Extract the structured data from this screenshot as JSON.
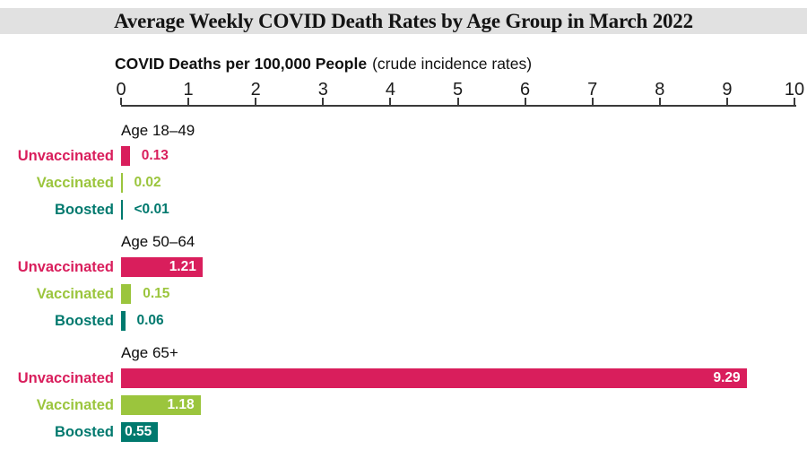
{
  "colors": {
    "unvaccinated": "#d91e5c",
    "vaccinated": "#9bc53d",
    "boosted": "#00796e",
    "header_band": "#e1e1e1",
    "axis": "#3a3a3a",
    "text": "#111111"
  },
  "chart_data": {
    "type": "bar",
    "orientation": "horizontal",
    "title": "Average Weekly COVID Death Rates by Age Group in March 2022",
    "xlabel_bold": "COVID Deaths per 100,000 People",
    "xlabel_note": "(crude incidence rates)",
    "xlim": [
      0,
      10
    ],
    "ticks": [
      0,
      1,
      2,
      3,
      4,
      5,
      6,
      7,
      8,
      9,
      10
    ],
    "grid": false,
    "legend_position": "row-labels-left",
    "series_names": [
      "Unvaccinated",
      "Vaccinated",
      "Boosted"
    ],
    "groups": [
      {
        "label": "Age 18–49",
        "bars": [
          {
            "series": "Unvaccinated",
            "value": 0.13,
            "display": "0.13",
            "value_inside": false
          },
          {
            "series": "Vaccinated",
            "value": 0.02,
            "display": "0.02",
            "value_inside": false
          },
          {
            "series": "Boosted",
            "value": 0.005,
            "display": "<0.01",
            "value_inside": false
          }
        ]
      },
      {
        "label": "Age 50–64",
        "bars": [
          {
            "series": "Unvaccinated",
            "value": 1.21,
            "display": "1.21",
            "value_inside": true
          },
          {
            "series": "Vaccinated",
            "value": 0.15,
            "display": "0.15",
            "value_inside": false
          },
          {
            "series": "Boosted",
            "value": 0.06,
            "display": "0.06",
            "value_inside": false
          }
        ]
      },
      {
        "label": "Age 65+",
        "bars": [
          {
            "series": "Unvaccinated",
            "value": 9.29,
            "display": "9.29",
            "value_inside": true
          },
          {
            "series": "Vaccinated",
            "value": 1.18,
            "display": "1.18",
            "value_inside": true
          },
          {
            "series": "Boosted",
            "value": 0.55,
            "display": "0.55",
            "value_inside": true
          }
        ]
      }
    ]
  }
}
